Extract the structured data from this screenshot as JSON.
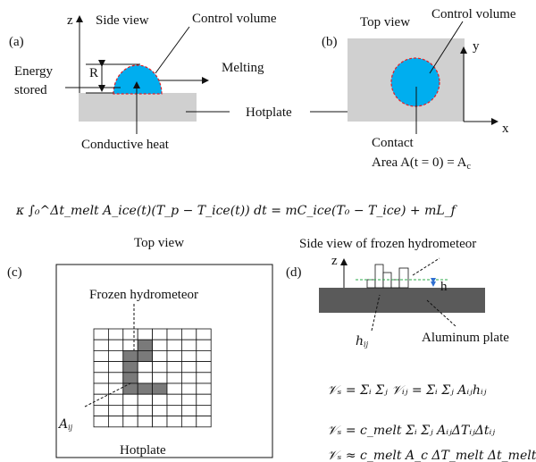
{
  "panel_a": {
    "label": "(a)",
    "z_axis": "z",
    "title": "Side view",
    "control_volume": "Control volume",
    "radius": "R",
    "energy_line1": "Energy",
    "energy_line2": "stored",
    "melting": "Melting",
    "conductive_heat": "Conductive heat",
    "hotplate": "Hotplate"
  },
  "panel_b": {
    "label": "(b)",
    "title": "Top view",
    "control_volume": "Control volume",
    "y_axis": "y",
    "x_axis": "x",
    "contact_line1": "Contact",
    "contact_line2": "Area A(t = 0) = A",
    "contact_sub": "c"
  },
  "equation_main": "κ ∫₀^Δt_melt A_ice(t)(T_p − T_ice(t)) dt = mC_ice(T₀ − T_ice) + mL_f",
  "panel_c": {
    "label": "(c)",
    "title": "Top view",
    "frozen": "Frozen hydrometeor",
    "area": "A",
    "area_sub": "ij",
    "hotplate": "Hotplate"
  },
  "panel_d": {
    "label": "(d)",
    "title": "Side view of frozen hydrometeor",
    "z_axis": "z",
    "h": "h",
    "hij": "h",
    "hij_sub": "ij",
    "plate": "Aluminum plate"
  },
  "equations_d": [
    "𝒱ₛ = Σᵢ Σⱼ 𝒱ᵢⱼ = Σᵢ Σⱼ Aᵢⱼhᵢⱼ",
    "𝒱ₛ = c_melt Σᵢ Σⱼ AᵢⱼΔTᵢⱼΔtᵢⱼ",
    "𝒱ₛ ≈ c_melt A_c ΔT_melt Δt_melt ."
  ],
  "colors": {
    "ice": "#00aeef",
    "dashed_red": "#e0202a",
    "hotplate": "#d0d0d0",
    "plate": "#5a5a5a",
    "green": "#2aa84a",
    "blue_arrow": "#2f6fd0",
    "shaded_cell": "#7a7a7a"
  }
}
